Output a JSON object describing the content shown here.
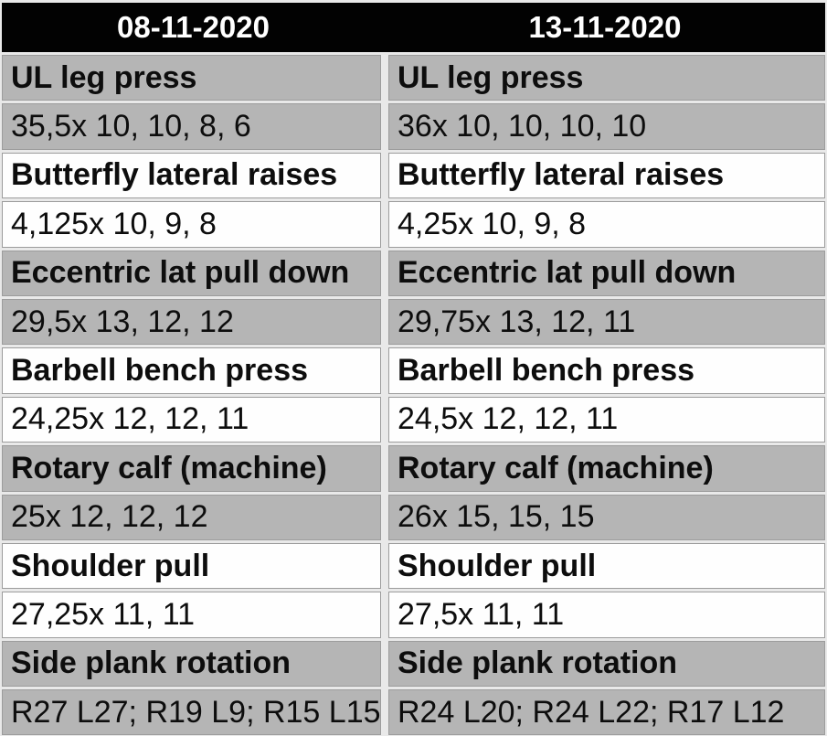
{
  "title": "Workout log comparison table",
  "header": {
    "columns": [
      "08-11-2020",
      "13-11-2020"
    ]
  },
  "workouts": [
    {
      "date": "08-11-2020",
      "entries": [
        {
          "exercise": "UL leg press",
          "sets": "35,5x 10, 10, 8, 6"
        },
        {
          "exercise": "Butterfly lateral raises",
          "sets": "4,125x 10, 9, 8"
        },
        {
          "exercise": "Eccentric lat pull down",
          "sets": "29,5x 13, 12, 12"
        },
        {
          "exercise": "Barbell bench press",
          "sets": "24,25x 12, 12, 11"
        },
        {
          "exercise": "Rotary calf (machine)",
          "sets": "25x 12, 12, 12"
        },
        {
          "exercise": "Shoulder pull",
          "sets": "27,25x 11, 11"
        },
        {
          "exercise": "Side plank rotation",
          "sets": "R27 L27; R19 L9; R15 L15"
        }
      ]
    },
    {
      "date": "13-11-2020",
      "entries": [
        {
          "exercise": "UL leg press",
          "sets": "36x 10, 10, 10, 10"
        },
        {
          "exercise": "Butterfly lateral raises",
          "sets": "4,25x 10, 9, 8"
        },
        {
          "exercise": "Eccentric lat pull down",
          "sets": "29,75x 13, 12, 11"
        },
        {
          "exercise": "Barbell bench press",
          "sets": "24,5x 12, 12, 11"
        },
        {
          "exercise": "Rotary calf (machine)",
          "sets": "26x 15, 15, 15"
        },
        {
          "exercise": "Shoulder pull",
          "sets": "27,5x 11, 11"
        },
        {
          "exercise": "Side plank rotation",
          "sets": "R24 L20; R24 L22; R17 L12"
        }
      ]
    }
  ],
  "colors": {
    "header_background": "#000000",
    "header_text": "#ffffff",
    "row_shaded": "#b5b5b5",
    "row_unshaded": "#fefefe",
    "cell_border": "#9c9c9c",
    "grid_gap": "#e9e9e9",
    "body_text": "#0d0d0d"
  }
}
